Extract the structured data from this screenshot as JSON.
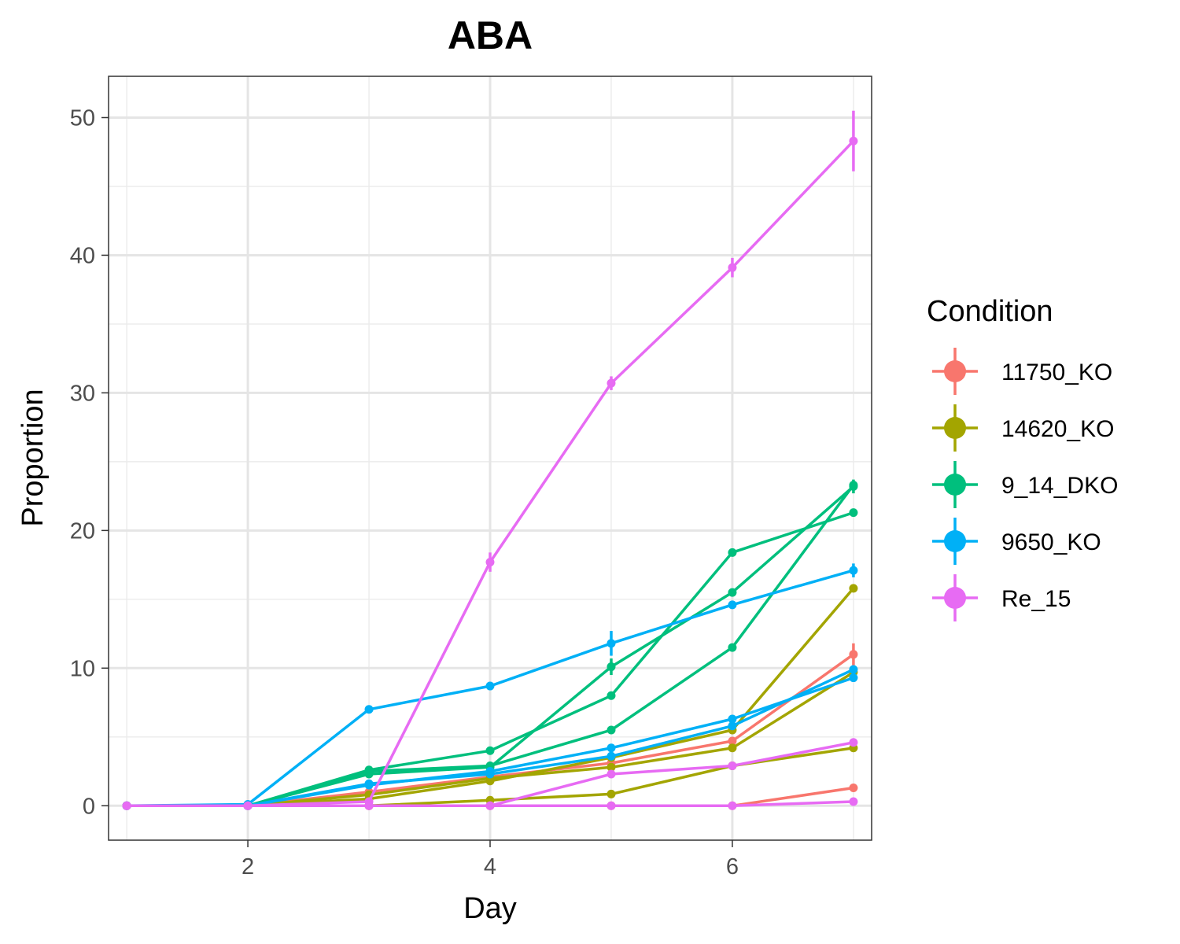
{
  "chart_data": {
    "type": "line",
    "title": "ABA",
    "xlabel": "Day",
    "ylabel": "Proportion",
    "xlim": [
      0.85,
      7.15
    ],
    "ylim": [
      -2.5,
      53
    ],
    "x_ticks": [
      2,
      4,
      6
    ],
    "y_ticks": [
      0,
      10,
      20,
      30,
      40,
      50
    ],
    "grid": true,
    "legend": {
      "title": "Condition",
      "placement": "right",
      "entries": [
        "11750_KO",
        "14620_KO",
        "9_14_DKO",
        "9650_KO",
        "Re_15"
      ]
    },
    "colors": {
      "11750_KO": "#F8766D",
      "14620_KO": "#A3A500",
      "9_14_DKO": "#00BF7D",
      "9650_KO": "#00B0F6",
      "Re_15": "#E76BF3"
    },
    "series": [
      {
        "condition": "11750_KO",
        "x": [
          1,
          2,
          3,
          4,
          5,
          6,
          7
        ],
        "y": [
          0,
          0,
          1.0,
          2.1,
          3.1,
          4.7,
          11.0
        ],
        "err": [
          0,
          0,
          0,
          0,
          0,
          0,
          0.8
        ]
      },
      {
        "condition": "11750_KO",
        "x": [
          1,
          2,
          3,
          4,
          5,
          6,
          7
        ],
        "y": [
          0,
          0,
          0,
          0,
          0,
          0,
          1.3
        ],
        "err": [
          0,
          0,
          0,
          0,
          0,
          0,
          0
        ]
      },
      {
        "condition": "14620_KO",
        "x": [
          1,
          2,
          3,
          4,
          5,
          6,
          7
        ],
        "y": [
          0,
          0,
          0.5,
          1.8,
          3.5,
          5.5,
          15.8
        ],
        "err": [
          0,
          0,
          0,
          0,
          0,
          0,
          0
        ]
      },
      {
        "condition": "14620_KO",
        "x": [
          1,
          2,
          3,
          4,
          5,
          6,
          7
        ],
        "y": [
          0,
          0,
          0.8,
          2.0,
          2.8,
          4.2,
          9.7
        ],
        "err": [
          0,
          0,
          0,
          0,
          0,
          0,
          0
        ]
      },
      {
        "condition": "14620_KO",
        "x": [
          1,
          2,
          3,
          4,
          5,
          6,
          7
        ],
        "y": [
          0,
          0,
          0,
          0.4,
          0.85,
          2.9,
          4.2
        ],
        "err": [
          0,
          0,
          0,
          0,
          0,
          0,
          0
        ]
      },
      {
        "condition": "9_14_DKO",
        "x": [
          1,
          2,
          3,
          4,
          5,
          6,
          7
        ],
        "y": [
          0,
          0,
          2.3,
          2.8,
          10.1,
          15.5,
          23.2
        ],
        "err": [
          0,
          0,
          0,
          0,
          0.6,
          0,
          0.5
        ]
      },
      {
        "condition": "9_14_DKO",
        "x": [
          1,
          2,
          3,
          4,
          5,
          6,
          7
        ],
        "y": [
          0,
          0,
          2.6,
          4.0,
          8.0,
          18.4,
          21.3
        ],
        "err": [
          0,
          0,
          0,
          0,
          0,
          0,
          0
        ]
      },
      {
        "condition": "9_14_DKO",
        "x": [
          1,
          2,
          3,
          4,
          5,
          6,
          7
        ],
        "y": [
          0,
          0,
          2.5,
          2.9,
          5.5,
          11.5,
          23.3
        ],
        "err": [
          0,
          0,
          0,
          0,
          0,
          0,
          0
        ]
      },
      {
        "condition": "9650_KO",
        "x": [
          1,
          2,
          3,
          4,
          5,
          6,
          7
        ],
        "y": [
          0,
          0.1,
          7.0,
          8.7,
          11.8,
          14.6,
          17.1
        ],
        "err": [
          0,
          0,
          0,
          0,
          0.9,
          0,
          0.5
        ]
      },
      {
        "condition": "9650_KO",
        "x": [
          1,
          2,
          3,
          4,
          5,
          6,
          7
        ],
        "y": [
          0,
          0,
          1.5,
          2.5,
          4.2,
          6.3,
          9.3
        ],
        "err": [
          0,
          0,
          0,
          0,
          0,
          0,
          0
        ]
      },
      {
        "condition": "9650_KO",
        "x": [
          1,
          2,
          3,
          4,
          5,
          6,
          7
        ],
        "y": [
          0,
          0,
          1.6,
          2.3,
          3.6,
          5.8,
          9.9
        ],
        "err": [
          0,
          0,
          0,
          0,
          0,
          0,
          0
        ]
      },
      {
        "condition": "Re_15",
        "x": [
          1,
          2,
          3,
          4,
          5,
          6,
          7
        ],
        "y": [
          0,
          0,
          0.3,
          17.7,
          30.7,
          39.1,
          48.3
        ],
        "err": [
          0,
          0,
          0,
          0.7,
          0.5,
          0.7,
          2.2
        ]
      },
      {
        "condition": "Re_15",
        "x": [
          1,
          2,
          3,
          4,
          5,
          6,
          7
        ],
        "y": [
          0,
          0,
          0,
          0,
          2.3,
          2.9,
          4.6
        ],
        "err": [
          0,
          0,
          0,
          0,
          0,
          0,
          0
        ]
      },
      {
        "condition": "Re_15",
        "x": [
          1,
          2,
          3,
          4,
          5,
          6,
          7
        ],
        "y": [
          0,
          0,
          0,
          0,
          0,
          0,
          0.3
        ],
        "err": [
          0,
          0,
          0,
          0,
          0,
          0,
          0
        ]
      }
    ]
  }
}
